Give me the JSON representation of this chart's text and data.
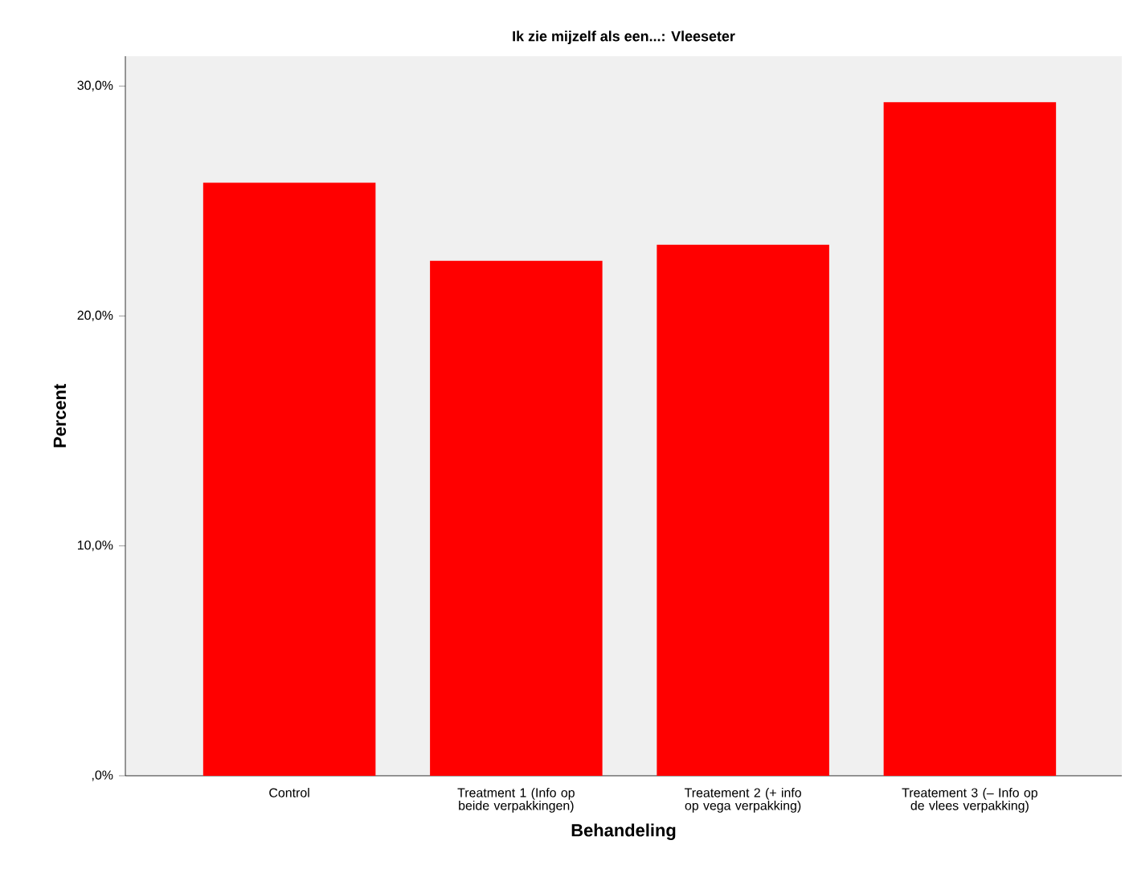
{
  "chart_data": {
    "type": "bar",
    "title": "Ik zie mijzelf als een...: Vleeseter",
    "xlabel": "Behandeling",
    "ylabel": "Percent",
    "categories": [
      "Control",
      "Treatment 1 (Info op beide verpakkingen)",
      "Treatement 2 (+ info op vega verpakking)",
      "Treatement 3 (– Info op de vlees verpakking)"
    ],
    "values": [
      25.8,
      22.4,
      23.1,
      29.3
    ],
    "color": "#ff0000",
    "ylim": [
      0,
      31.3
    ],
    "yticks": [
      {
        "value": 0,
        "label": ",0%"
      },
      {
        "value": 10,
        "label": "10,0%"
      },
      {
        "value": 20,
        "label": "20,0%"
      },
      {
        "value": 30,
        "label": "30,0%"
      }
    ],
    "grid": false
  }
}
